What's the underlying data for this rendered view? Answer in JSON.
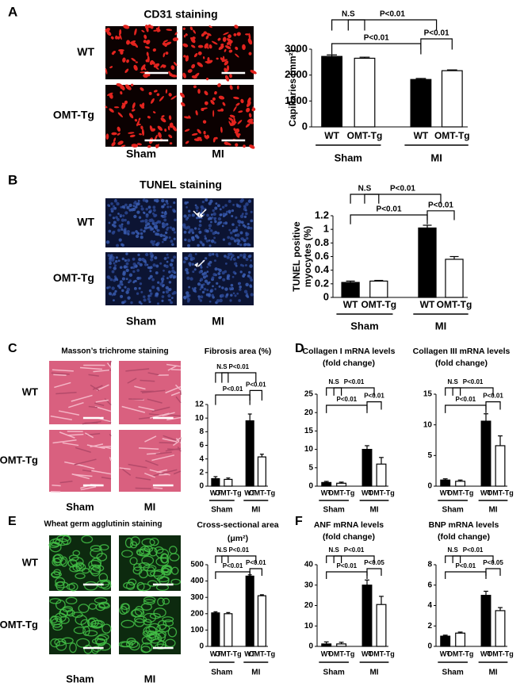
{
  "panels": [
    {
      "letter": "A",
      "title": "CD31 staining",
      "rows": [
        "WT",
        "OMT-Tg"
      ],
      "columns": [
        "Sham",
        "MI"
      ]
    },
    {
      "letter": "B",
      "title": "TUNEL staining",
      "rows": [
        "WT",
        "OMT-Tg"
      ],
      "columns": [
        "Sham",
        "MI"
      ]
    },
    {
      "letter": "C",
      "title": "Masson’s trichrome staining",
      "rows": [
        "WT",
        "OMT-Tg"
      ],
      "columns": [
        "Sham",
        "MI"
      ]
    },
    {
      "letter": "D"
    },
    {
      "letter": "E",
      "title": "Wheat germ agglutinin staining",
      "rows": [
        "WT",
        "OMT-Tg"
      ],
      "columns": [
        "Sham",
        "MI"
      ]
    },
    {
      "letter": "F"
    }
  ],
  "chart_data": [
    {
      "type": "bar",
      "ylabel": [
        "Capillaries (mm²)"
      ],
      "categories": [
        "WT",
        "OMT-Tg",
        "WT",
        "OMT-Tg"
      ],
      "groups": [
        "Sham",
        "MI"
      ],
      "values": [
        2720,
        2650,
        1830,
        2170
      ],
      "errors": [
        60,
        40,
        40,
        30
      ],
      "colors": [
        "#000000",
        "#ffffff",
        "#000000",
        "#ffffff"
      ],
      "ylim": [
        0,
        3000
      ],
      "yticks": [
        0,
        1000,
        2000,
        3000
      ],
      "annotations": [
        "N.S",
        "P<0.01",
        "P<0.01",
        "P<0.01"
      ]
    },
    {
      "type": "bar",
      "ylabel": [
        "TUNEL positive",
        "myocytes (%)"
      ],
      "categories": [
        "WT",
        "OMT-Tg",
        "WT",
        "OMT-Tg"
      ],
      "groups": [
        "Sham",
        "MI"
      ],
      "values": [
        0.22,
        0.24,
        1.02,
        0.56
      ],
      "errors": [
        0.02,
        0.01,
        0.04,
        0.04
      ],
      "colors": [
        "#000000",
        "#ffffff",
        "#000000",
        "#ffffff"
      ],
      "ylim": [
        0,
        1.2
      ],
      "yticks": [
        0,
        0.2,
        0.4,
        0.6,
        0.8,
        1,
        1.2
      ],
      "annotations": [
        "N.S",
        "P<0.01",
        "P<0.01",
        "P<0.01"
      ]
    },
    {
      "type": "bar",
      "title": [
        "Fibrosis area (%)"
      ],
      "categories": [
        "WT",
        "OMT-Tg",
        "WT",
        "OMT-Tg"
      ],
      "groups": [
        "Sham",
        "MI"
      ],
      "values": [
        1.1,
        1.0,
        9.6,
        4.3
      ],
      "errors": [
        0.3,
        0.2,
        1.0,
        0.4
      ],
      "colors": [
        "#000000",
        "#ffffff",
        "#000000",
        "#ffffff"
      ],
      "ylim": [
        0,
        12
      ],
      "yticks": [
        0,
        2,
        4,
        6,
        8,
        10,
        12
      ],
      "annotations": [
        "N.S",
        "P<0.01",
        "P<0.01",
        "P<0.01"
      ]
    },
    {
      "type": "bar",
      "title": [
        "Collagen I mRNA levels",
        "(fold change)"
      ],
      "categories": [
        "WT",
        "OMT-Tg",
        "WT",
        "OMT-Tg"
      ],
      "groups": [
        "Sham",
        "MI"
      ],
      "values": [
        1.0,
        0.8,
        10.0,
        6.0
      ],
      "errors": [
        0.3,
        0.3,
        1.0,
        1.8
      ],
      "colors": [
        "#000000",
        "#ffffff",
        "#000000",
        "#ffffff"
      ],
      "ylim": [
        0,
        25
      ],
      "yticks": [
        0,
        5,
        10,
        15,
        20,
        25
      ],
      "annotations": [
        "N.S",
        "P<0.01",
        "P<0.01",
        "P<0.01"
      ]
    },
    {
      "type": "bar",
      "title": [
        "Collagen III mRNA levels",
        "(fold change)"
      ],
      "categories": [
        "WT",
        "OMT-Tg",
        "WT",
        "OMT-Tg"
      ],
      "groups": [
        "Sham",
        "MI"
      ],
      "values": [
        1.0,
        0.8,
        10.6,
        6.6
      ],
      "errors": [
        0.2,
        0.2,
        1.2,
        1.6
      ],
      "colors": [
        "#000000",
        "#ffffff",
        "#000000",
        "#ffffff"
      ],
      "ylim": [
        0,
        15
      ],
      "yticks": [
        0,
        5,
        10,
        15
      ],
      "annotations": [
        "N.S",
        "P<0.01",
        "P<0.01",
        "P<0.01"
      ]
    },
    {
      "type": "bar",
      "title": [
        "Cross-sectional area",
        "(μm²)"
      ],
      "categories": [
        "WT",
        "OMT-Tg",
        "WT",
        "OMT-Tg"
      ],
      "groups": [
        "Sham",
        "MI"
      ],
      "values": [
        205,
        200,
        430,
        310
      ],
      "errors": [
        7,
        7,
        8,
        6
      ],
      "colors": [
        "#000000",
        "#ffffff",
        "#000000",
        "#ffffff"
      ],
      "ylim": [
        0,
        500
      ],
      "yticks": [
        0,
        100,
        200,
        300,
        400,
        500
      ],
      "annotations": [
        "N.S",
        "P<0.01",
        "P<0.01",
        "P<0.01"
      ]
    },
    {
      "type": "bar",
      "title": [
        "ANF  mRNA levels",
        "(fold change)"
      ],
      "categories": [
        "WT",
        "OMT-Tg",
        "WT",
        "OMT-Tg"
      ],
      "groups": [
        "Sham",
        "MI"
      ],
      "values": [
        1.2,
        1.2,
        30,
        20.5
      ],
      "errors": [
        1,
        0.8,
        2.5,
        4
      ],
      "colors": [
        "#000000",
        "#ffffff",
        "#000000",
        "#ffffff"
      ],
      "ylim": [
        0,
        40
      ],
      "yticks": [
        0,
        10,
        20,
        30,
        40
      ],
      "annotations": [
        "N.S",
        "P<0.01",
        "P<0.01",
        "P<0.05"
      ]
    },
    {
      "type": "bar",
      "title": [
        "BNP  mRNA levels",
        "(fold change)"
      ],
      "categories": [
        "WT",
        "OMT-Tg",
        "WT",
        "OMT-Tg"
      ],
      "groups": [
        "Sham",
        "MI"
      ],
      "values": [
        1.0,
        1.3,
        5.0,
        3.5
      ],
      "errors": [
        0.1,
        0.1,
        0.4,
        0.3
      ],
      "colors": [
        "#000000",
        "#ffffff",
        "#000000",
        "#ffffff"
      ],
      "ylim": [
        0,
        8
      ],
      "yticks": [
        0,
        2,
        4,
        6,
        8
      ],
      "annotations": [
        "N.S",
        "P<0.01",
        "P<0.01",
        "P<0.05"
      ]
    }
  ]
}
